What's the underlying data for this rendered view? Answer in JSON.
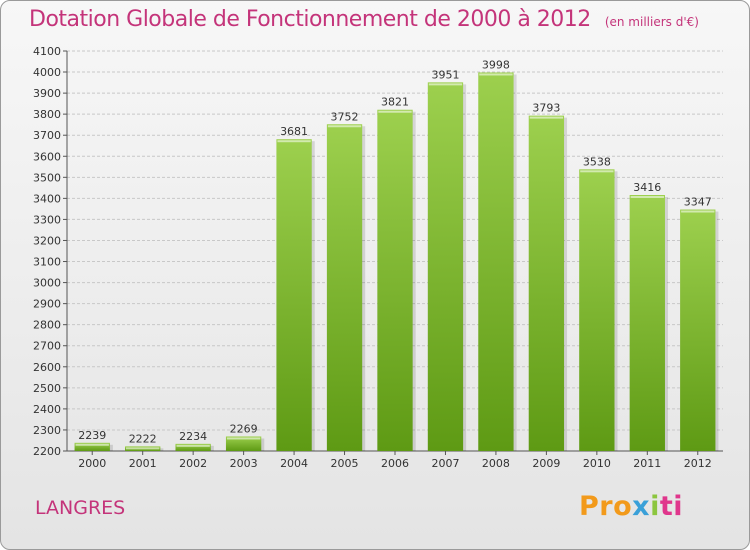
{
  "colors": {
    "title": "#c4347a",
    "bar_top": "#9dd04e",
    "bar_bottom": "#5e9a14",
    "grid": "#c8c8c8"
  },
  "chart_data": {
    "type": "bar",
    "title": "Dotation Globale de Fonctionnement de 2000 à 2012",
    "subtitle": "(en milliers d'€)",
    "categories": [
      "2000",
      "2001",
      "2002",
      "2003",
      "2004",
      "2005",
      "2006",
      "2007",
      "2008",
      "2009",
      "2010",
      "2011",
      "2012"
    ],
    "values": [
      2239,
      2222,
      2234,
      2269,
      3681,
      3752,
      3821,
      3951,
      3998,
      3793,
      3538,
      3416,
      3347
    ],
    "ylim": [
      2200,
      4100
    ],
    "ytick_step": 100,
    "grid": true,
    "xlabel": "",
    "ylabel": ""
  },
  "footer": {
    "commune": "LANGRES",
    "logo": {
      "parts": [
        "Pro",
        "x",
        "i",
        "ti"
      ]
    }
  }
}
